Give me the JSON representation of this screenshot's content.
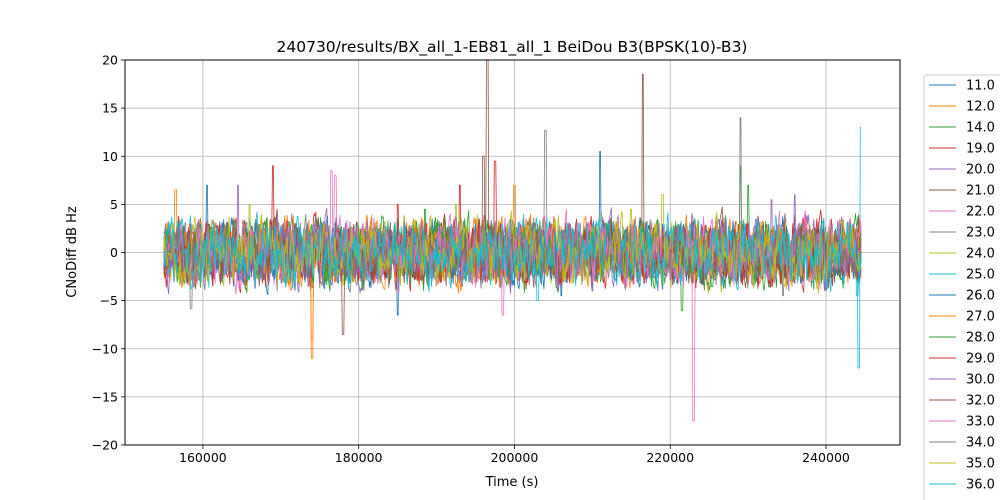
{
  "chart_data": {
    "type": "line",
    "title": "240730/results/BX_all_1-EB81_all_1 BeiDou B3(BPSK(10)-B3)",
    "xlabel": "Time (s)",
    "ylabel": "CNoDiff dB Hz",
    "xlim": [
      150000,
      249500
    ],
    "ylim": [
      -20,
      20
    ],
    "x_ticks": [
      160000,
      180000,
      200000,
      220000,
      240000
    ],
    "y_ticks": [
      -20,
      -15,
      -10,
      -5,
      0,
      5,
      10,
      15,
      20
    ],
    "grid": true,
    "legend_position": "right, outside plot",
    "series": [
      {
        "name": "11.0",
        "color": "#1f77b4",
        "x_range": [
          155000,
          244500
        ],
        "amplitude": 3.0,
        "spikes": [
          [
            206000,
            -4.5
          ],
          [
            185000,
            -6.5
          ]
        ]
      },
      {
        "name": "12.0",
        "color": "#ff7f0e",
        "x_range": [
          155000,
          244500
        ],
        "amplitude": 3.0,
        "spikes": [
          [
            174000,
            -11
          ],
          [
            156500,
            6.5
          ]
        ]
      },
      {
        "name": "14.0",
        "color": "#2ca02c",
        "x_range": [
          155000,
          244500
        ],
        "amplitude": 3.0,
        "spikes": [
          [
            229000,
            9
          ],
          [
            221500,
            -6
          ]
        ]
      },
      {
        "name": "19.0",
        "color": "#d62728",
        "x_range": [
          155000,
          244500
        ],
        "amplitude": 3.0,
        "spikes": [
          [
            169000,
            9
          ],
          [
            193000,
            7
          ]
        ]
      },
      {
        "name": "20.0",
        "color": "#9467bd",
        "x_range": [
          155000,
          244500
        ],
        "amplitude": 3.0,
        "spikes": [
          [
            164500,
            7
          ],
          [
            233000,
            5.5
          ]
        ]
      },
      {
        "name": "21.0",
        "color": "#8c564b",
        "x_range": [
          155000,
          244500
        ],
        "amplitude": 3.0,
        "spikes": [
          [
            196500,
            20
          ],
          [
            216500,
            18.5
          ]
        ]
      },
      {
        "name": "22.0",
        "color": "#e377c2",
        "x_range": [
          155000,
          244500
        ],
        "amplitude": 3.0,
        "spikes": [
          [
            223000,
            -17.5
          ],
          [
            176500,
            8.5
          ]
        ]
      },
      {
        "name": "23.0",
        "color": "#7f7f7f",
        "x_range": [
          155000,
          244500
        ],
        "amplitude": 3.0,
        "spikes": [
          [
            204000,
            12.7
          ],
          [
            229000,
            14
          ]
        ]
      },
      {
        "name": "24.0",
        "color": "#bcbd22",
        "x_range": [
          155000,
          244500
        ],
        "amplitude": 3.0,
        "spikes": [
          [
            219000,
            6
          ],
          [
            192500,
            5
          ]
        ]
      },
      {
        "name": "25.0",
        "color": "#17becf",
        "x_range": [
          155000,
          244500
        ],
        "amplitude": 3.0,
        "spikes": [
          [
            244500,
            13
          ],
          [
            244200,
            -12
          ]
        ]
      },
      {
        "name": "26.0",
        "color": "#1f77b4",
        "x_range": [
          155000,
          244500
        ],
        "amplitude": 3.0,
        "spikes": [
          [
            211000,
            10.5
          ],
          [
            160500,
            7
          ]
        ]
      },
      {
        "name": "27.0",
        "color": "#ff7f0e",
        "x_range": [
          155000,
          244500
        ],
        "amplitude": 3.0,
        "spikes": [
          [
            200000,
            7
          ],
          [
            174000,
            -9
          ]
        ]
      },
      {
        "name": "28.0",
        "color": "#2ca02c",
        "x_range": [
          155000,
          244500
        ],
        "amplitude": 3.0,
        "spikes": [
          [
            230000,
            7
          ],
          [
            188500,
            4.5
          ]
        ]
      },
      {
        "name": "29.0",
        "color": "#d62728",
        "x_range": [
          155000,
          244500
        ],
        "amplitude": 3.0,
        "spikes": [
          [
            197500,
            9.5
          ],
          [
            185000,
            5
          ]
        ]
      },
      {
        "name": "30.0",
        "color": "#9467bd",
        "x_range": [
          155000,
          244500
        ],
        "amplitude": 3.0,
        "spikes": [
          [
            236000,
            6
          ],
          [
            210000,
            -4
          ]
        ]
      },
      {
        "name": "32.0",
        "color": "#8c564b",
        "x_range": [
          155000,
          244500
        ],
        "amplitude": 3.0,
        "spikes": [
          [
            178000,
            -8.5
          ],
          [
            196000,
            10
          ]
        ]
      },
      {
        "name": "33.0",
        "color": "#e377c2",
        "x_range": [
          155000,
          244500
        ],
        "amplitude": 3.0,
        "spikes": [
          [
            177000,
            8
          ],
          [
            198500,
            -6.5
          ]
        ]
      },
      {
        "name": "34.0",
        "color": "#7f7f7f",
        "x_range": [
          155000,
          244500
        ],
        "amplitude": 3.0,
        "spikes": [
          [
            158500,
            -5.8
          ],
          [
            234500,
            -4.5
          ]
        ]
      },
      {
        "name": "35.0",
        "color": "#bcbd22",
        "x_range": [
          155000,
          244500
        ],
        "amplitude": 3.0,
        "spikes": [
          [
            166000,
            5
          ],
          [
            215000,
            4.5
          ]
        ]
      },
      {
        "name": "36.0",
        "color": "#17becf",
        "x_range": [
          155000,
          244500
        ],
        "amplitude": 3.0,
        "spikes": [
          [
            244000,
            -4.5
          ],
          [
            203000,
            -5
          ]
        ]
      }
    ]
  }
}
